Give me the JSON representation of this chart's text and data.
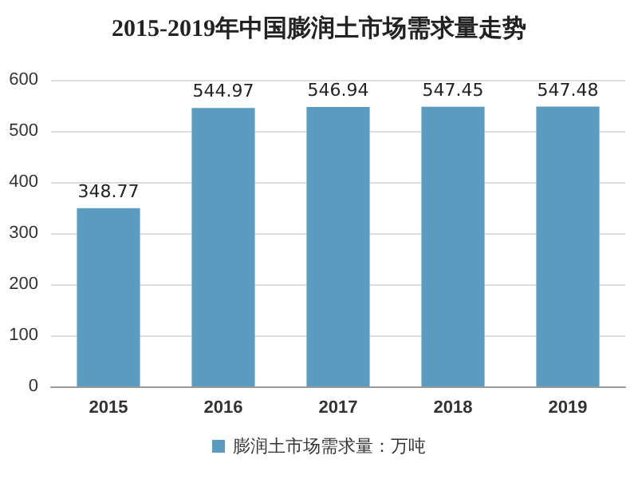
{
  "chart_data": {
    "type": "bar",
    "title": "2015-2019年中国膨润土市场需求量走势",
    "categories": [
      "2015",
      "2016",
      "2017",
      "2018",
      "2019"
    ],
    "series": [
      {
        "name": "膨润土市场需求量：万吨",
        "color": "#5b9bbf",
        "values": [
          348.77,
          544.97,
          546.94,
          547.45,
          547.48
        ]
      }
    ],
    "ylim": [
      0,
      600
    ],
    "yticks": [
      0,
      100,
      200,
      300,
      400,
      500,
      600
    ],
    "grid": "y",
    "legend": "bottom",
    "data_labels": true
  }
}
